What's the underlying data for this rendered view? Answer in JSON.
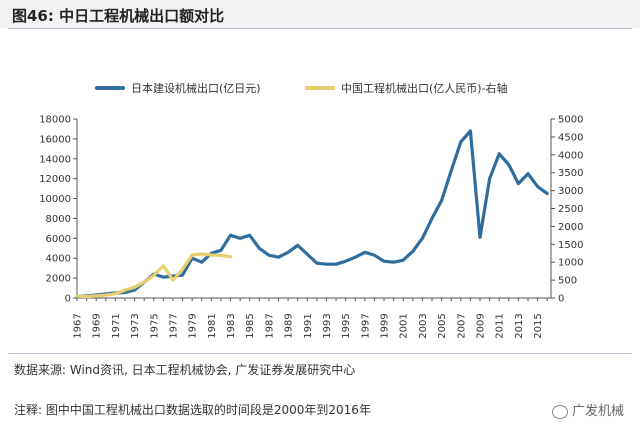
{
  "header": {
    "title": "图46: 中日工程机械出口额对比"
  },
  "footer": {
    "source": "数据来源: Wind资讯, 日本工程机械协会, 广发证券发展研究中心",
    "note": "注释: 图中中国工程机械出口数据选取的时间段是2000年到2016年",
    "brand": "广发机械"
  },
  "chart_data": {
    "type": "line",
    "title": "",
    "xlabel": "",
    "ylabel": "",
    "x_ticks": [
      "1967",
      "1969",
      "1971",
      "1973",
      "1975",
      "1977",
      "1979",
      "1981",
      "1983",
      "1985",
      "1987",
      "1989",
      "1991",
      "1993",
      "1995",
      "1997",
      "1999",
      "2001",
      "2003",
      "2005",
      "2007",
      "2009",
      "2011",
      "2013",
      "2015"
    ],
    "ylim_left": [
      0,
      18000
    ],
    "yticks_left": [
      "0",
      "2000",
      "4000",
      "6000",
      "8000",
      "10000",
      "12000",
      "14000",
      "16000",
      "18000"
    ],
    "ylim_right": [
      0,
      5000
    ],
    "yticks_right": [
      "0",
      "500",
      "1000",
      "1500",
      "2000",
      "2500",
      "3000",
      "3500",
      "4000",
      "4500",
      "5000"
    ],
    "grid": false,
    "legend_position": "top",
    "series": [
      {
        "name": "日本建设机械出口(亿日元)",
        "axis": "left",
        "color": "#2e6d9e",
        "x": [
          1967,
          1968,
          1969,
          1970,
          1971,
          1972,
          1973,
          1974,
          1975,
          1976,
          1977,
          1978,
          1979,
          1980,
          1981,
          1982,
          1983,
          1984,
          1985,
          1986,
          1987,
          1988,
          1989,
          1990,
          1991,
          1992,
          1993,
          1994,
          1995,
          1996,
          1997,
          1998,
          1999,
          2000,
          2001,
          2002,
          2003,
          2004,
          2005,
          2006,
          2007,
          2008,
          2009,
          2010,
          2011,
          2012,
          2013,
          2014,
          2015,
          2016
        ],
        "y": [
          150,
          200,
          300,
          400,
          500,
          550,
          800,
          1600,
          2400,
          2100,
          2200,
          2300,
          4000,
          3600,
          4500,
          4800,
          6300,
          6000,
          6300,
          5000,
          4300,
          4100,
          4600,
          5300,
          4400,
          3500,
          3400,
          3400,
          3700,
          4100,
          4600,
          4300,
          3700,
          3600,
          3800,
          4700,
          6000,
          8000,
          9800,
          12800,
          15700,
          16800,
          6100,
          12000,
          14500,
          13400,
          11500,
          12500,
          11200,
          10500
        ]
      },
      {
        "name": "中国工程机械出口(亿人民币)-右轴",
        "axis": "right",
        "color": "#e6cf6f",
        "x": [
          1967,
          1968,
          1969,
          1970,
          1971,
          1972,
          1973,
          1974,
          1975,
          1976,
          1977,
          1978,
          1979,
          1980,
          1981,
          1982,
          1983
        ],
        "y": [
          50,
          40,
          60,
          80,
          120,
          220,
          300,
          450,
          630,
          900,
          500,
          800,
          1200,
          1230,
          1200,
          1190,
          1150
        ]
      }
    ]
  }
}
